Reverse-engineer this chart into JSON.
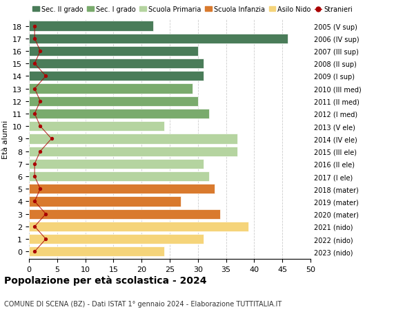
{
  "ages": [
    18,
    17,
    16,
    15,
    14,
    13,
    12,
    11,
    10,
    9,
    8,
    7,
    6,
    5,
    4,
    3,
    2,
    1,
    0
  ],
  "right_labels": [
    "2005 (V sup)",
    "2006 (IV sup)",
    "2007 (III sup)",
    "2008 (II sup)",
    "2009 (I sup)",
    "2010 (III med)",
    "2011 (II med)",
    "2012 (I med)",
    "2013 (V ele)",
    "2014 (IV ele)",
    "2015 (III ele)",
    "2016 (II ele)",
    "2017 (I ele)",
    "2018 (mater)",
    "2019 (mater)",
    "2020 (mater)",
    "2021 (nido)",
    "2022 (nido)",
    "2023 (nido)"
  ],
  "bar_values": [
    22,
    46,
    30,
    31,
    31,
    29,
    30,
    32,
    24,
    37,
    37,
    31,
    32,
    33,
    27,
    34,
    39,
    31,
    24
  ],
  "bar_colors": [
    "#4a7c59",
    "#4a7c59",
    "#4a7c59",
    "#4a7c59",
    "#4a7c59",
    "#7aab6d",
    "#7aab6d",
    "#7aab6d",
    "#b5d4a0",
    "#b5d4a0",
    "#b5d4a0",
    "#b5d4a0",
    "#b5d4a0",
    "#d97a2e",
    "#d97a2e",
    "#d97a2e",
    "#f5d47a",
    "#f5d47a",
    "#f5d47a"
  ],
  "stranieri_values": [
    1,
    1,
    2,
    1,
    3,
    1,
    2,
    1,
    2,
    4,
    2,
    1,
    1,
    2,
    1,
    3,
    1,
    3,
    1
  ],
  "legend_items": [
    {
      "label": "Sec. II grado",
      "color": "#4a7c59"
    },
    {
      "label": "Sec. I grado",
      "color": "#7aab6d"
    },
    {
      "label": "Scuola Primaria",
      "color": "#b5d4a0"
    },
    {
      "label": "Scuola Infanzia",
      "color": "#d97a2e"
    },
    {
      "label": "Asilo Nido",
      "color": "#f5d47a"
    },
    {
      "label": "Stranieri",
      "color": "#aa0000"
    }
  ],
  "ylabel_left": "Età alunni",
  "title": "Popolazione per età scolastica - 2024",
  "subtitle": "COMUNE DI SCENA (BZ) - Dati ISTAT 1° gennaio 2024 - Elaborazione TUTTITALIA.IT",
  "xlim": [
    0,
    50
  ],
  "xticks": [
    0,
    5,
    10,
    15,
    20,
    25,
    30,
    35,
    40,
    45,
    50
  ],
  "bg_color": "#ffffff",
  "grid_color": "#cccccc",
  "bar_height": 0.78
}
